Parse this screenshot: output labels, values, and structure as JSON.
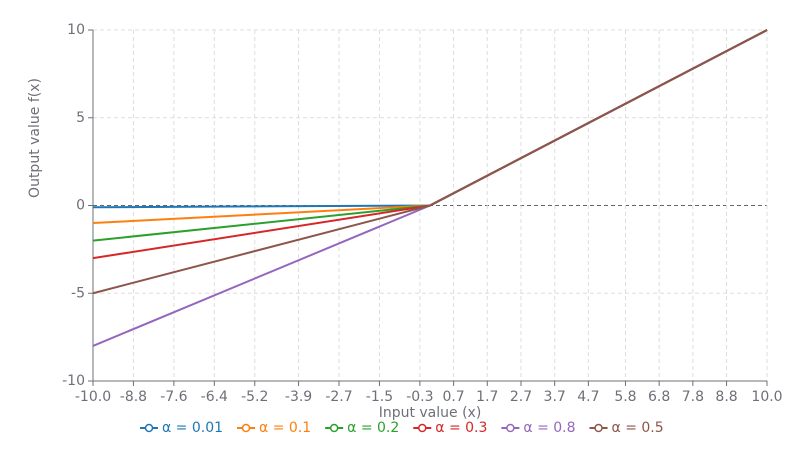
{
  "chart_data": {
    "type": "line",
    "x_label": "Input value (x)",
    "y_label": "Output value f(x)",
    "x": [
      -10,
      0,
      10
    ],
    "series": [
      {
        "name": "α = 0.01",
        "color": "#1f77b4",
        "values": [
          -0.1,
          0,
          10
        ]
      },
      {
        "name": "α = 0.1",
        "color": "#ff7f0e",
        "values": [
          -1,
          0,
          10
        ]
      },
      {
        "name": "α = 0.2",
        "color": "#2ca02c",
        "values": [
          -2,
          0,
          10
        ]
      },
      {
        "name": "α = 0.3",
        "color": "#d62728",
        "values": [
          -3,
          0,
          10
        ]
      },
      {
        "name": "α = 0.8",
        "color": "#9467bd",
        "values": [
          -8,
          0,
          10
        ]
      },
      {
        "name": "α = 0.5",
        "color": "#8c564b",
        "values": [
          -5,
          0,
          10
        ]
      }
    ],
    "xlim": [
      -10,
      10
    ],
    "xticks": [
      {
        "value": -10,
        "label": "-10.0"
      },
      -8.8,
      -7.6,
      -6.4,
      -5.2,
      -3.9,
      -2.7,
      -1.5,
      -0.3,
      0.7,
      1.7,
      2.7,
      3.7,
      4.7,
      5.8,
      6.8,
      7.8,
      8.8,
      {
        "value": 10,
        "label": "10.0"
      }
    ],
    "ylim": [
      -10,
      10
    ],
    "yticks": [
      -10,
      -5,
      0,
      5,
      10
    ],
    "grid": true,
    "legend": "bottom"
  }
}
